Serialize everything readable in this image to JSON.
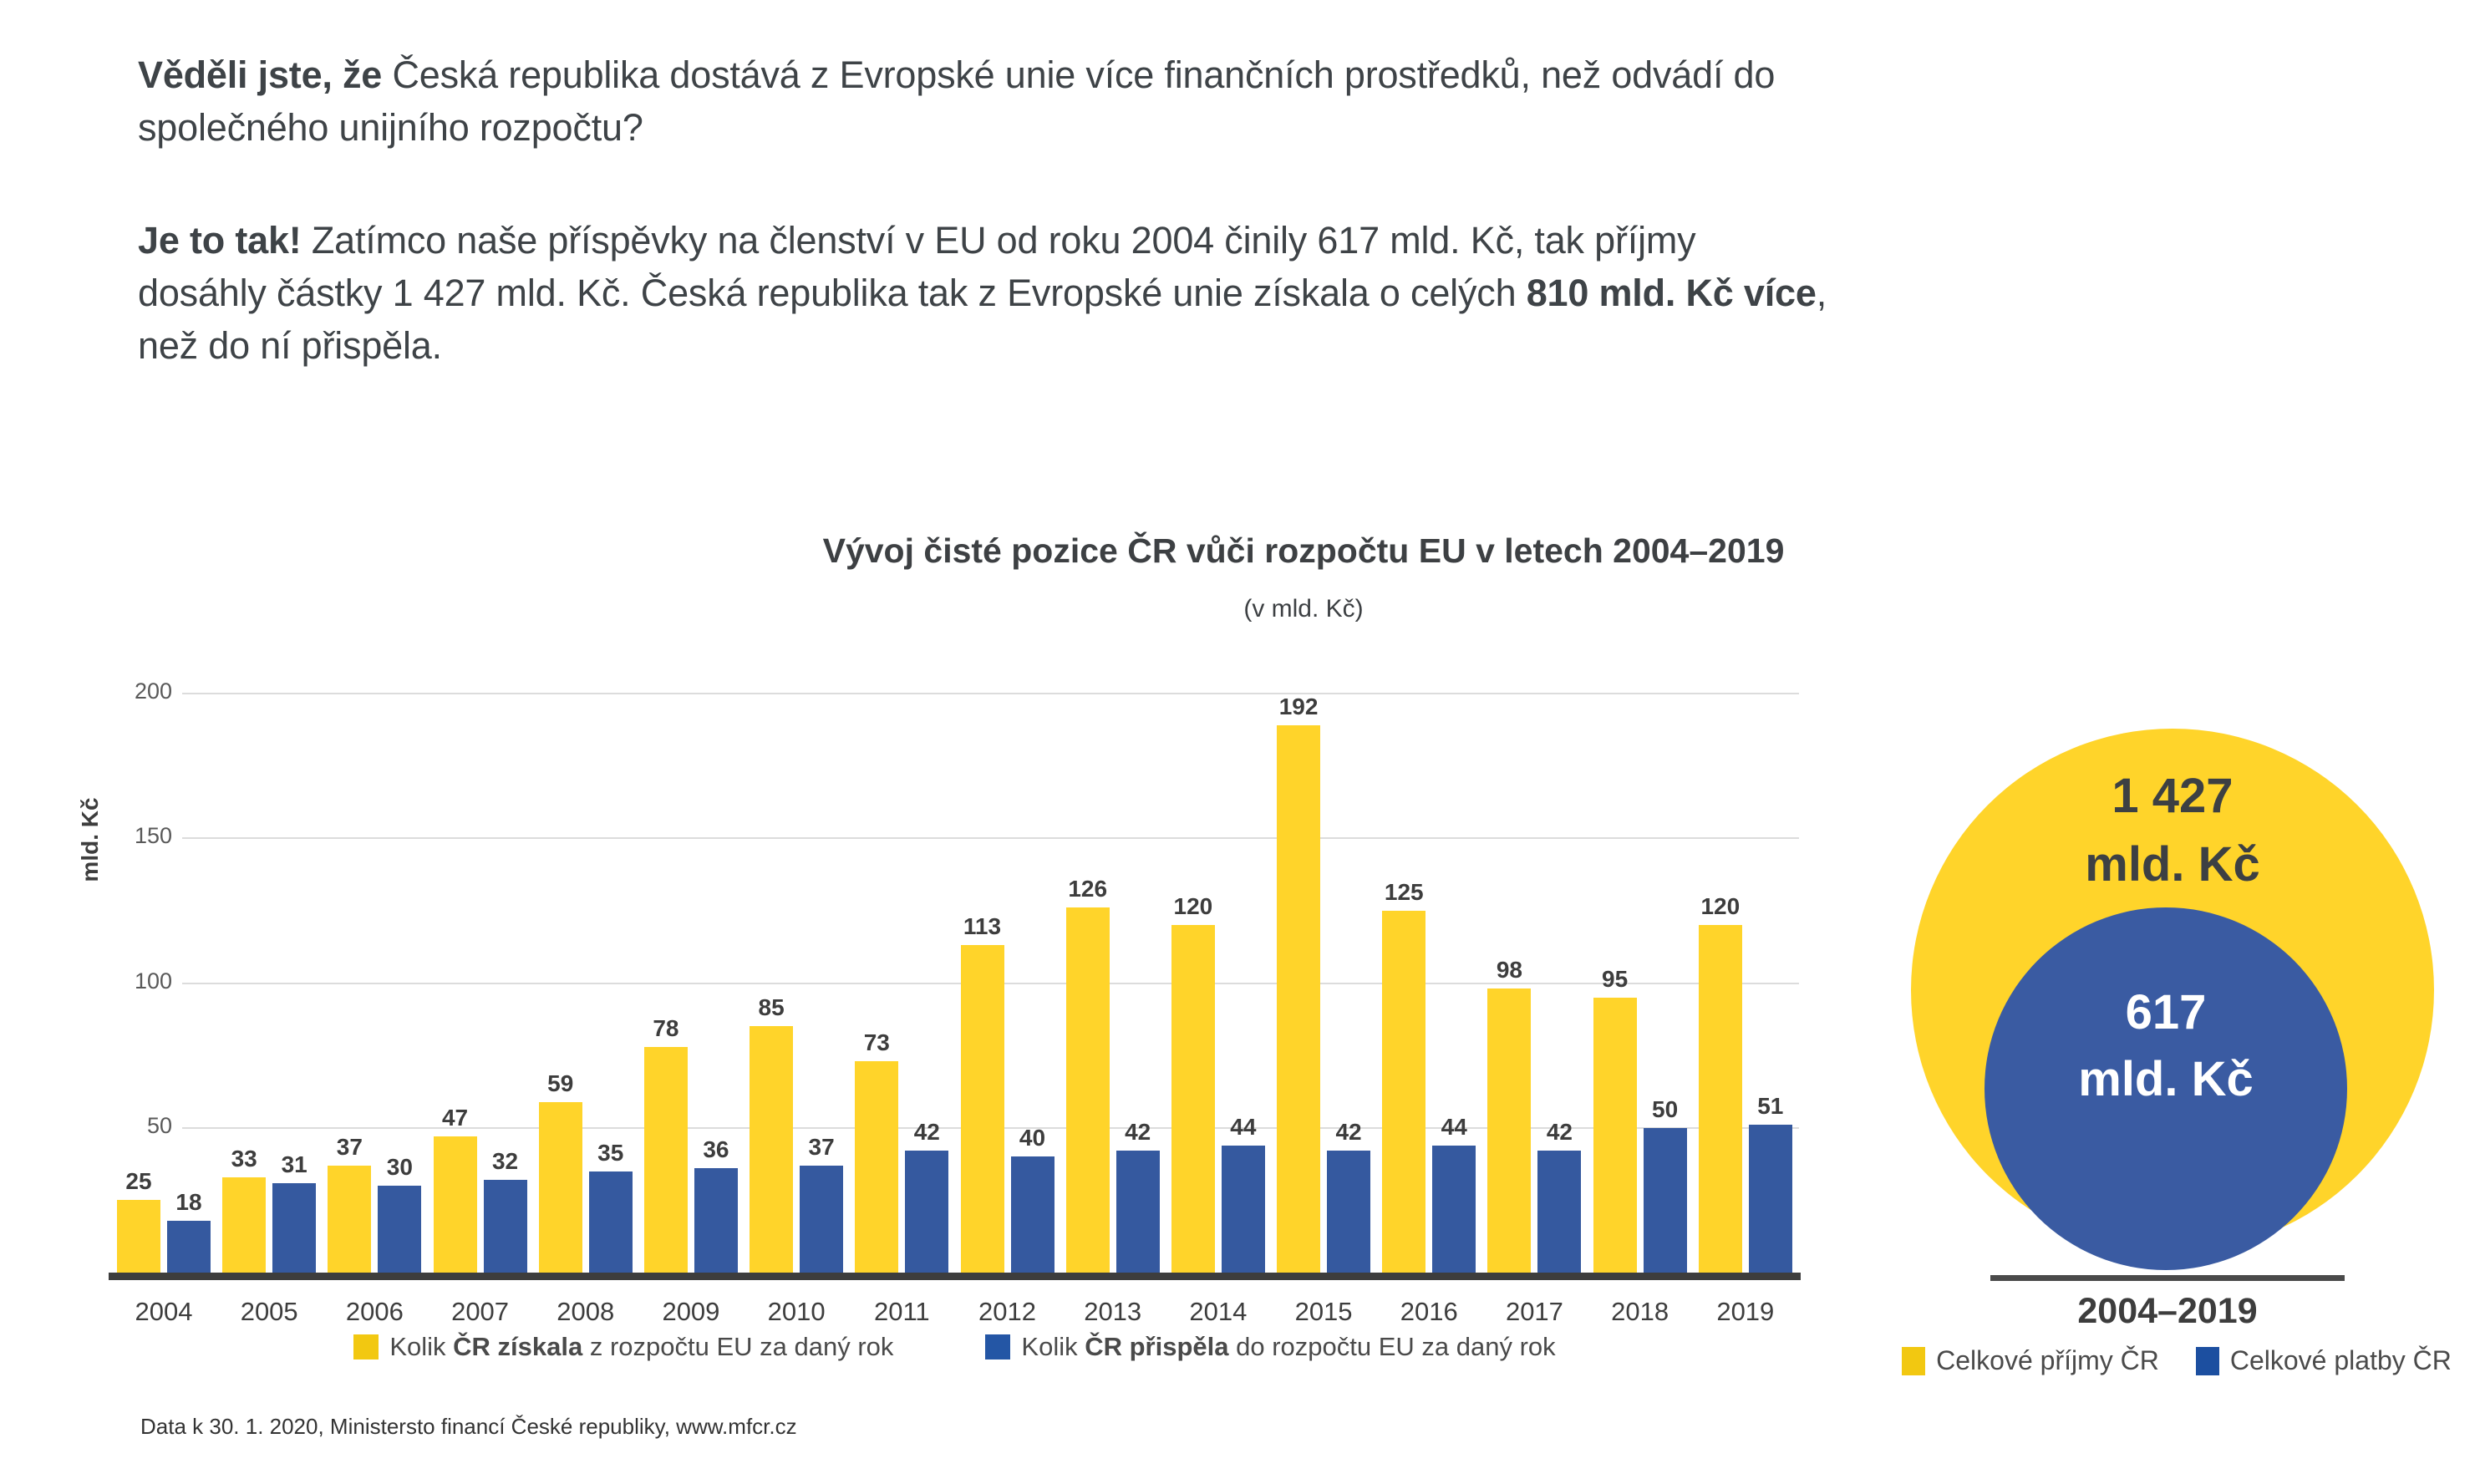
{
  "intro": {
    "p1_bold": "Věděli jste, že",
    "p1_rest": " Česká republika dostává z Evropské unie více finančních prostředků, než odvádí do\nspolečného unijního rozpočtu?",
    "p2_bold": "Je to tak!",
    "p2_mid": " Zatímco naše příspěvky na členství v EU od roku 2004 činily 617 mld. Kč, tak příjmy\ndosáhly částky 1 427 mld. Kč. Česká republika tak z Evropské unie získala o celých ",
    "p2_bold2": "810 mld. Kč více",
    "p2_tail": ",\nnež do ní přispěla."
  },
  "chart_data": [
    {
      "type": "bar",
      "title": "Vývoj čisté pozice ČR vůči rozpočtu EU v letech 2004–2019",
      "subtitle": "(v mld. Kč)",
      "categories": [
        "2004",
        "2005",
        "2006",
        "2007",
        "2008",
        "2009",
        "2010",
        "2011",
        "2012",
        "2013",
        "2014",
        "2015",
        "2016",
        "2017",
        "2018",
        "2019"
      ],
      "series": [
        {
          "name": "Kolik ČR získala z rozpočtu EU za daný rok",
          "color": "#ffd42a",
          "values": [
            25,
            33,
            37,
            47,
            59,
            78,
            85,
            73,
            113,
            126,
            120,
            192,
            125,
            98,
            95,
            120
          ]
        },
        {
          "name": "Kolik ČR přispěla do rozpočtu EU za daný rok",
          "color": "#35599f",
          "values": [
            18,
            31,
            30,
            32,
            35,
            36,
            37,
            42,
            40,
            42,
            44,
            42,
            44,
            42,
            50,
            51
          ]
        }
      ],
      "xlabel": "",
      "ylabel": "mld. Kč",
      "ylim": [
        0,
        200
      ],
      "yticks": [
        50,
        100,
        150,
        200
      ],
      "grid": true,
      "legend_position": "bottom"
    },
    {
      "type": "circle-comparison",
      "outer": {
        "name": "Celkové příjmy ČR",
        "value": 1427,
        "amount": "1 427",
        "unit": "mld. Kč",
        "color": "#ffd42a"
      },
      "inner": {
        "name": "Celkové platby ČR",
        "value": 617,
        "amount": "617",
        "unit": "mld. Kč",
        "color": "#3a5ba2"
      },
      "period": "2004–2019"
    }
  ],
  "bar_legend": {
    "left": {
      "pre": "Kolik ",
      "bold": "ČR získala",
      "post": " z rozpočtu EU za daný rok"
    },
    "right": {
      "pre": "Kolik ",
      "bold": "ČR přispěla",
      "post": " do rozpočtu EU za daný rok"
    }
  },
  "footer": {
    "text": "Data k 30. 1. 2020, Ministersto financí České republiky, www.mfcr.cz"
  },
  "colors": {
    "yellow": "#ffd42a",
    "bar_blue": "#35599f",
    "circle_blue": "#3a5ba2",
    "text_dark": "#3e4347",
    "axis_gray": "#595959",
    "gridline": "#dcdcdc",
    "baseline": "#3d3d3d"
  }
}
